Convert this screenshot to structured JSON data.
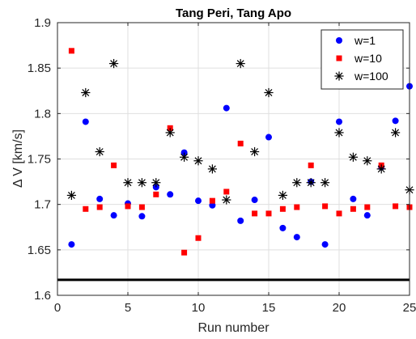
{
  "chart_data": {
    "type": "scatter",
    "title": "Tang Peri, Tang Apo",
    "xlabel": "Run number",
    "ylabel": "Δ V [km/s]",
    "xlim": [
      0,
      25
    ],
    "ylim": [
      1.6,
      1.9
    ],
    "xticks": [
      "0",
      "5",
      "10",
      "15",
      "20",
      "25"
    ],
    "yticks": [
      "1.6",
      "1.65",
      "1.7",
      "1.75",
      "1.8",
      "1.85",
      "1.9"
    ],
    "grid": true,
    "legend_position": "top-right",
    "reference_line": {
      "y": 1.617,
      "color": "#000000"
    },
    "series": [
      {
        "name": "w=1",
        "marker": "circle",
        "color": "#0000ff",
        "x": [
          1,
          2,
          3,
          4,
          5,
          6,
          7,
          8,
          9,
          10,
          11,
          12,
          13,
          14,
          15,
          16,
          17,
          18,
          19,
          20,
          21,
          22,
          23,
          24,
          25
        ],
        "y": [
          1.656,
          1.791,
          1.706,
          1.688,
          1.701,
          1.687,
          1.719,
          1.711,
          1.757,
          1.704,
          1.699,
          1.806,
          1.682,
          1.705,
          1.774,
          1.674,
          1.664,
          1.725,
          1.656,
          1.791,
          1.706,
          1.688,
          1.741,
          1.792,
          1.83
        ]
      },
      {
        "name": "w=10",
        "marker": "square",
        "color": "#ff0000",
        "x": [
          1,
          2,
          3,
          4,
          5,
          6,
          7,
          8,
          9,
          10,
          11,
          12,
          13,
          14,
          15,
          16,
          17,
          18,
          19,
          20,
          21,
          22,
          23,
          24,
          25
        ],
        "y": [
          1.869,
          1.695,
          1.697,
          1.743,
          1.698,
          1.697,
          1.711,
          1.784,
          1.647,
          1.663,
          1.704,
          1.714,
          1.767,
          1.69,
          1.69,
          1.695,
          1.697,
          1.743,
          1.698,
          1.69,
          1.695,
          1.697,
          1.743,
          1.698,
          1.697
        ]
      },
      {
        "name": "w=100",
        "marker": "asterisk",
        "color": "#000000",
        "x": [
          1,
          2,
          3,
          4,
          5,
          6,
          7,
          8,
          9,
          10,
          11,
          12,
          13,
          14,
          15,
          16,
          17,
          18,
          19,
          20,
          21,
          22,
          23,
          24,
          25
        ],
        "y": [
          1.71,
          1.823,
          1.758,
          1.855,
          1.724,
          1.724,
          1.724,
          1.779,
          1.752,
          1.748,
          1.739,
          1.705,
          1.855,
          1.758,
          1.823,
          1.71,
          1.724,
          1.724,
          1.724,
          1.779,
          1.752,
          1.748,
          1.739,
          1.779,
          1.716
        ]
      }
    ]
  }
}
